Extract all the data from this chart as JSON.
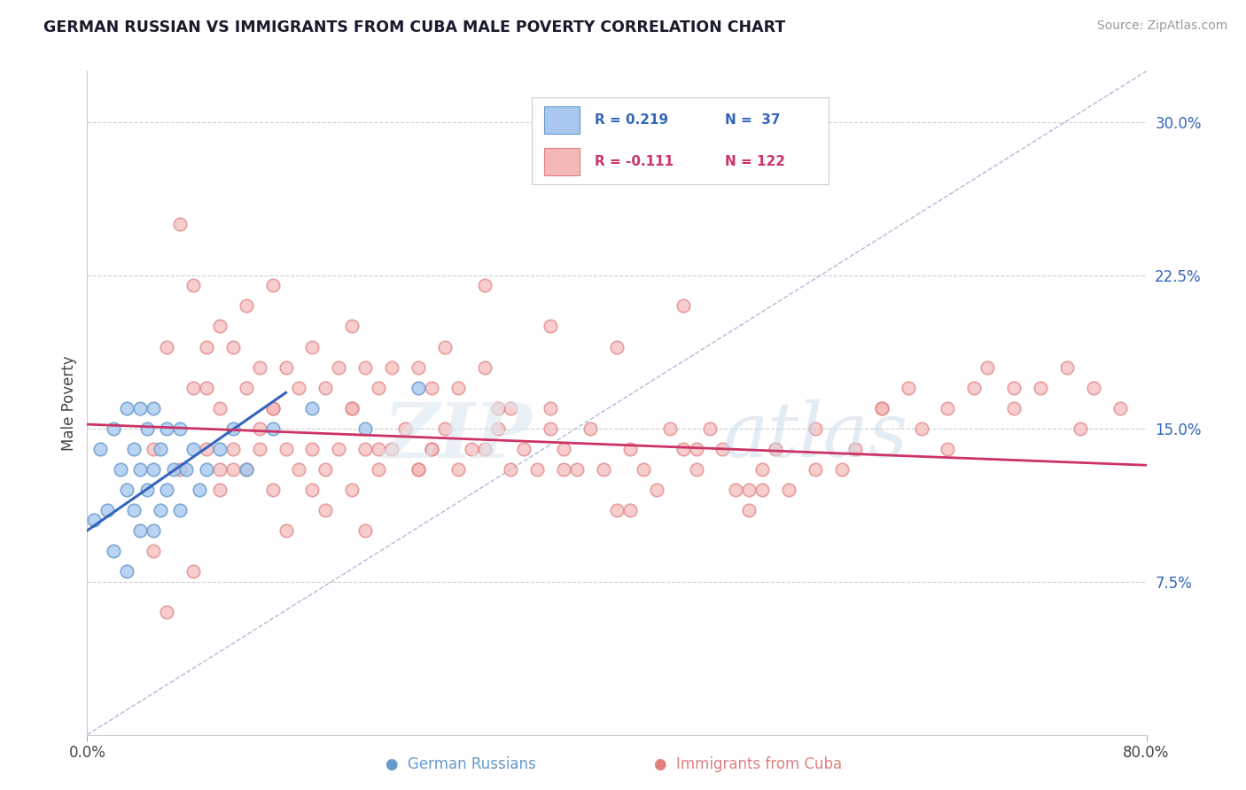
{
  "title": "GERMAN RUSSIAN VS IMMIGRANTS FROM CUBA MALE POVERTY CORRELATION CHART",
  "source": "Source: ZipAtlas.com",
  "ylabel": "Male Poverty",
  "xlim": [
    0.0,
    80.0
  ],
  "ylim": [
    0.0,
    32.5
  ],
  "yticks": [
    7.5,
    15.0,
    22.5,
    30.0
  ],
  "ytick_labels": [
    "7.5%",
    "15.0%",
    "22.5%",
    "30.0%"
  ],
  "xtick_labels": [
    "0.0%",
    "80.0%"
  ],
  "color_blue_fill": "#a8c8f0",
  "color_blue_edge": "#6699cc",
  "color_pink_fill": "#f4b8b8",
  "color_pink_edge": "#e08080",
  "color_blue_line": "#3366bb",
  "color_pink_line": "#cc3366",
  "color_diag_line": "#99aacc",
  "legend_blue_fill": "#a8c8f0",
  "legend_pink_fill": "#f4b8b8",
  "legend_R1": "R = 0.219",
  "legend_N1": "N =  37",
  "legend_R2": "R = -0.111",
  "legend_N2": "N = 122",
  "legend_R1_color": "#3366bb",
  "legend_N1_color": "#3366bb",
  "legend_R2_color": "#cc3366",
  "legend_N2_color": "#cc3366",
  "gr_x": [
    0.5,
    1,
    1.5,
    2,
    2,
    2.5,
    3,
    3,
    3,
    3.5,
    3.5,
    4,
    4,
    4,
    4.5,
    4.5,
    5,
    5,
    5,
    5.5,
    5.5,
    6,
    6,
    6.5,
    7,
    7,
    7.5,
    8,
    8.5,
    9,
    10,
    11,
    12,
    14,
    17,
    21,
    25
  ],
  "gr_y": [
    10.5,
    14,
    11,
    9,
    15,
    13,
    8,
    12,
    16,
    11,
    14,
    10,
    13,
    16,
    12,
    15,
    10,
    13,
    16,
    11,
    14,
    12,
    15,
    13,
    11,
    15,
    13,
    14,
    12,
    13,
    14,
    15,
    13,
    15,
    16,
    15,
    17
  ],
  "cuba_x": [
    5,
    5,
    6,
    7,
    7,
    8,
    8,
    9,
    9,
    10,
    10,
    10,
    11,
    11,
    12,
    12,
    12,
    13,
    13,
    14,
    14,
    14,
    15,
    15,
    16,
    16,
    17,
    17,
    18,
    18,
    19,
    19,
    20,
    20,
    20,
    21,
    21,
    22,
    22,
    23,
    23,
    24,
    25,
    25,
    26,
    26,
    27,
    27,
    28,
    28,
    29,
    30,
    30,
    31,
    32,
    32,
    33,
    34,
    35,
    35,
    36,
    37,
    38,
    39,
    40,
    41,
    42,
    43,
    44,
    45,
    46,
    47,
    48,
    49,
    50,
    51,
    52,
    53,
    55,
    57,
    58,
    60,
    62,
    63,
    65,
    67,
    68,
    70,
    72,
    74,
    76,
    78,
    55,
    60,
    65,
    70,
    75,
    40,
    45,
    50,
    35,
    30,
    25,
    20,
    15,
    10,
    8,
    6,
    22,
    18,
    14,
    11,
    9,
    13,
    17,
    21,
    26,
    31,
    36,
    41,
    46,
    51
  ],
  "cuba_y": [
    9,
    14,
    19,
    25,
    13,
    17,
    22,
    14,
    19,
    12,
    16,
    20,
    14,
    19,
    13,
    17,
    21,
    14,
    18,
    12,
    16,
    22,
    14,
    18,
    13,
    17,
    14,
    19,
    13,
    17,
    14,
    18,
    12,
    16,
    20,
    14,
    18,
    13,
    17,
    14,
    18,
    15,
    13,
    18,
    14,
    17,
    15,
    19,
    13,
    17,
    14,
    14,
    18,
    15,
    13,
    16,
    14,
    13,
    16,
    20,
    14,
    13,
    15,
    13,
    11,
    14,
    13,
    12,
    15,
    14,
    13,
    15,
    14,
    12,
    11,
    13,
    14,
    12,
    15,
    13,
    14,
    16,
    17,
    15,
    16,
    17,
    18,
    16,
    17,
    18,
    17,
    16,
    13,
    16,
    14,
    17,
    15,
    19,
    21,
    12,
    15,
    22,
    13,
    16,
    10,
    13,
    8,
    6,
    14,
    11,
    16,
    13,
    17,
    15,
    12,
    10,
    14,
    16,
    13,
    11,
    14,
    12
  ]
}
